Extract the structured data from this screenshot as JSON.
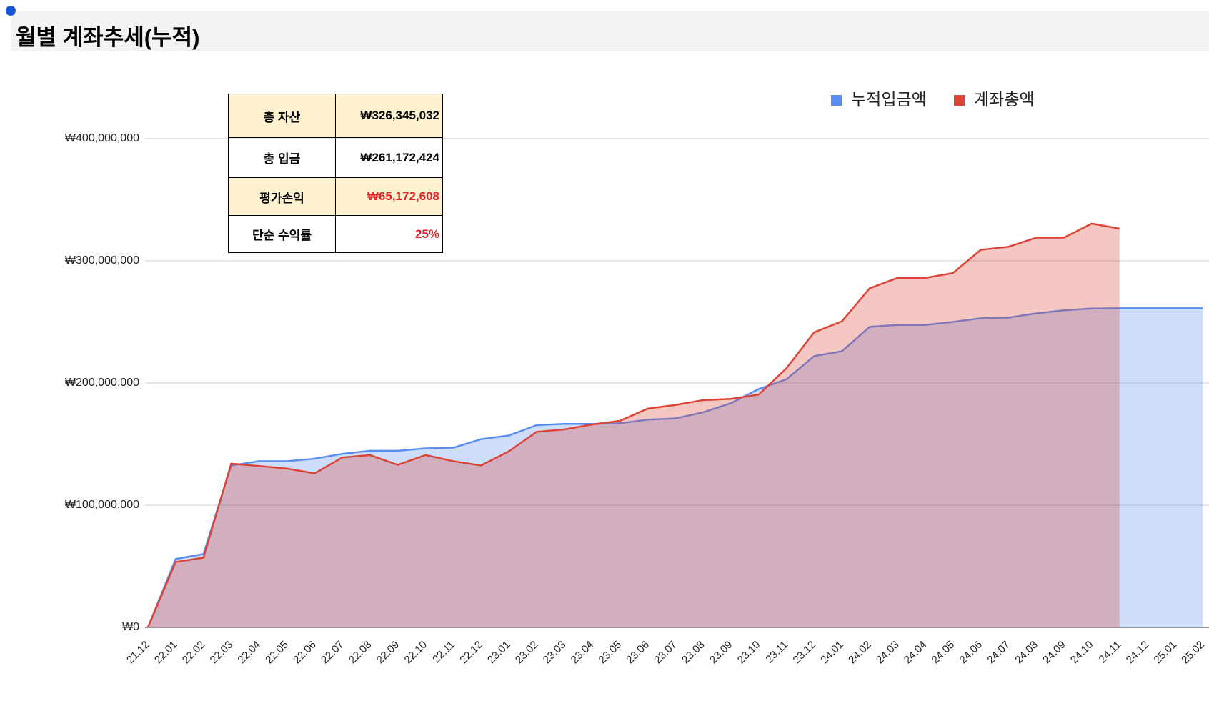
{
  "header": {
    "title": "월별 계좌추세(누적)"
  },
  "table": {
    "rows": [
      [
        "총 자산",
        "₩326,345,032"
      ],
      [
        "총 입금",
        "₩261,172,424"
      ],
      [
        "평가손익",
        "₩65,172,608"
      ],
      [
        "단순 수익률",
        "25%"
      ]
    ]
  },
  "chart_data": {
    "type": "area",
    "categories": [
      "21.12",
      "22.01",
      "22.02",
      "22.03",
      "22.04",
      "22.05",
      "22.06",
      "22.07",
      "22.08",
      "22.09",
      "22.10",
      "22.11",
      "22.12",
      "23.01",
      "23.02",
      "23.03",
      "23.04",
      "23.05",
      "23.06",
      "23.07",
      "23.08",
      "23.09",
      "23.10",
      "23.11",
      "23.12",
      "24.01",
      "24.02",
      "24.03",
      "24.04",
      "24.05",
      "24.06",
      "24.07",
      "24.08",
      "24.09",
      "24.10",
      "24.11",
      "24.12",
      "25.01",
      "25.02"
    ],
    "series": [
      {
        "name": "누적입금액",
        "color": "#5b8def",
        "values": [
          0,
          56000000,
          60000000,
          132500000,
          136000000,
          136000000,
          138000000,
          142000000,
          144500000,
          144500000,
          146500000,
          147000000,
          154000000,
          157000000,
          165500000,
          166500000,
          166500000,
          167000000,
          170000000,
          171000000,
          176000000,
          183500000,
          195000000,
          203000000,
          222000000,
          226000000,
          246000000,
          247500000,
          247500000,
          250000000,
          253000000,
          253500000,
          257000000,
          259500000,
          261000000,
          261172424,
          261172424,
          261172424,
          261172424
        ]
      },
      {
        "name": "계좌총액",
        "color": "#db4437",
        "values": [
          0,
          53500000,
          57000000,
          134000000,
          132000000,
          130000000,
          126000000,
          139000000,
          141000000,
          133000000,
          141000000,
          136000000,
          132500000,
          144000000,
          160000000,
          162000000,
          166000000,
          169000000,
          179000000,
          182000000,
          186000000,
          187000000,
          190500000,
          212000000,
          241500000,
          250500000,
          277500000,
          286000000,
          286000000,
          290000000,
          309000000,
          311500000,
          319000000,
          319000000,
          330500000,
          326345032,
          null,
          null,
          null
        ]
      }
    ],
    "ylim": [
      0,
      400000000
    ],
    "yticks": [
      {
        "value": 0,
        "label": "₩0"
      },
      {
        "value": 100000000,
        "label": "₩100,000,000"
      },
      {
        "value": 200000000,
        "label": "₩200,000,000"
      },
      {
        "value": 300000000,
        "label": "₩300,000,000"
      },
      {
        "value": 400000000,
        "label": "₩400,000,000"
      }
    ],
    "grid": true,
    "legend": "top"
  }
}
